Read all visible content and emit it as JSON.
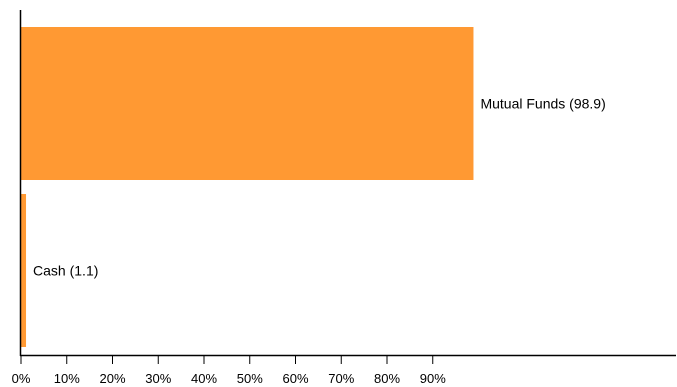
{
  "chart_data": {
    "type": "bar",
    "orientation": "horizontal",
    "categories": [
      "Mutual Funds",
      "Cash"
    ],
    "values": [
      98.9,
      1.1
    ],
    "data_labels": [
      "Mutual Funds (98.9)",
      "Cash (1.1)"
    ],
    "xlim": [
      0,
      100
    ],
    "x_ticks": [
      "0%",
      "10%",
      "20%",
      "30%",
      "40%",
      "50%",
      "60%",
      "70%",
      "80%",
      "90%"
    ],
    "title": "",
    "xlabel": "",
    "ylabel": "",
    "grid": false,
    "legend": "none",
    "bar_color": "#FF9933"
  }
}
